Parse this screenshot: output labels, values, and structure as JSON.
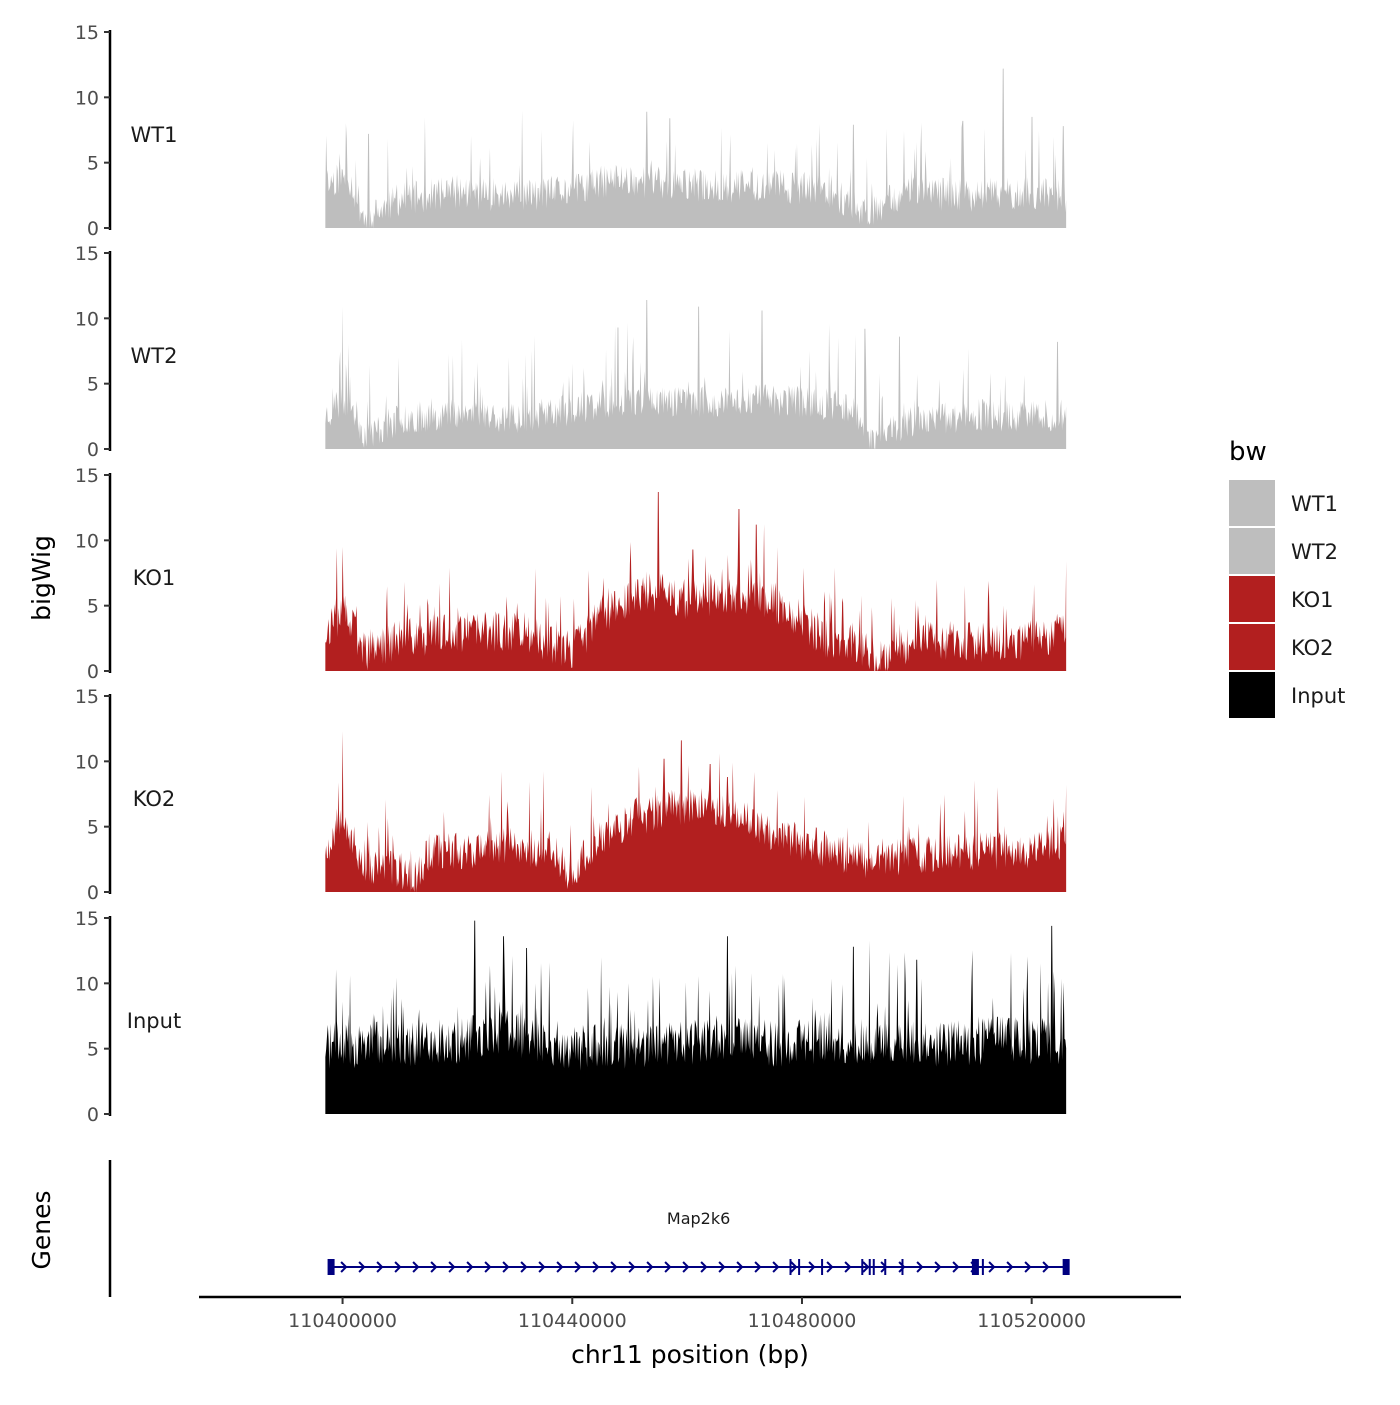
{
  "chart_data": {
    "type": "area",
    "ylabel": "bigWig",
    "xlabel": "chr11 position (bp)",
    "x_range": [
      110375000,
      110546000
    ],
    "x_data_range": [
      110397000,
      110526000
    ],
    "x_ticks": [
      110400000,
      110440000,
      110480000,
      110520000
    ],
    "x_tick_labels": [
      "110400000",
      "110440000",
      "110480000",
      "110520000"
    ],
    "y_range": [
      0,
      15
    ],
    "y_ticks": [
      0,
      5,
      10,
      15
    ],
    "y_tick_labels": [
      "0",
      "5",
      "10",
      "15"
    ],
    "legend": {
      "title": "bw",
      "position": "right",
      "items": [
        {
          "label": "WT1",
          "color": "#bebebe"
        },
        {
          "label": "WT2",
          "color": "#bebebe"
        },
        {
          "label": "KO1",
          "color": "#b21f1f"
        },
        {
          "label": "KO2",
          "color": "#b21f1f"
        },
        {
          "label": "Input",
          "color": "#000000"
        }
      ]
    },
    "series": [
      {
        "name": "WT1",
        "color": "#bebebe",
        "seed": 11,
        "base": 2.6,
        "noise": 2.6,
        "spike_prob": 0.08,
        "spike_max": 5.5,
        "profile": [
          [
            110397000,
            3.5
          ],
          [
            110401000,
            4.0
          ],
          [
            110404000,
            0.6
          ],
          [
            110410000,
            2.2
          ],
          [
            110420000,
            2.8
          ],
          [
            110430000,
            2.4
          ],
          [
            110440000,
            2.9
          ],
          [
            110448000,
            3.8
          ],
          [
            110456000,
            3.4
          ],
          [
            110465000,
            3.2
          ],
          [
            110475000,
            3.3
          ],
          [
            110485000,
            2.8
          ],
          [
            110491000,
            1.2
          ],
          [
            110498000,
            2.7
          ],
          [
            110507000,
            2.5
          ],
          [
            110514000,
            2.6
          ],
          [
            110520000,
            2.7
          ],
          [
            110526000,
            2.4
          ]
        ],
        "peaks": [
          [
            110404500,
            7.2
          ],
          [
            110453000,
            8.9
          ],
          [
            110457000,
            8.4
          ],
          [
            110489000,
            7.9
          ],
          [
            110508000,
            8.2
          ],
          [
            110515000,
            12.2
          ],
          [
            110520000,
            8.5
          ],
          [
            110525500,
            7.8
          ]
        ]
      },
      {
        "name": "WT2",
        "color": "#bebebe",
        "seed": 23,
        "base": 2.8,
        "noise": 2.5,
        "spike_prob": 0.08,
        "spike_max": 5.5,
        "profile": [
          [
            110397000,
            2.6
          ],
          [
            110401000,
            3.8
          ],
          [
            110404000,
            1.0
          ],
          [
            110410000,
            2.3
          ],
          [
            110420000,
            2.8
          ],
          [
            110430000,
            2.4
          ],
          [
            110440000,
            3.0
          ],
          [
            110448000,
            3.8
          ],
          [
            110456000,
            3.7
          ],
          [
            110465000,
            3.5
          ],
          [
            110472000,
            3.9
          ],
          [
            110480000,
            3.6
          ],
          [
            110489000,
            3.3
          ],
          [
            110492000,
            0.8
          ],
          [
            110500000,
            2.2
          ],
          [
            110510000,
            2.6
          ],
          [
            110520000,
            2.5
          ],
          [
            110526000,
            2.6
          ]
        ],
        "peaks": [
          [
            110400000,
            10.9
          ],
          [
            110453000,
            11.4
          ],
          [
            110462000,
            10.9
          ],
          [
            110473000,
            10.6
          ],
          [
            110448000,
            9.3
          ],
          [
            110491000,
            9.2
          ],
          [
            110497000,
            8.6
          ],
          [
            110524500,
            8.2
          ]
        ]
      },
      {
        "name": "KO1",
        "color": "#b21f1f",
        "seed": 37,
        "base": 3.0,
        "noise": 3.2,
        "spike_prob": 0.09,
        "spike_max": 5.0,
        "profile": [
          [
            110397000,
            3.0
          ],
          [
            110400000,
            4.6
          ],
          [
            110404000,
            1.5
          ],
          [
            110410000,
            2.5
          ],
          [
            110420000,
            3.0
          ],
          [
            110430000,
            3.1
          ],
          [
            110440000,
            1.4
          ],
          [
            110441000,
            2.2
          ],
          [
            110446000,
            4.6
          ],
          [
            110453000,
            6.2
          ],
          [
            110460000,
            5.4
          ],
          [
            110470000,
            5.8
          ],
          [
            110477000,
            5.0
          ],
          [
            110484000,
            2.5
          ],
          [
            110490000,
            2.1
          ],
          [
            110493000,
            0.8
          ],
          [
            110500000,
            2.6
          ],
          [
            110510000,
            2.1
          ],
          [
            110520000,
            2.4
          ],
          [
            110525000,
            3.1
          ],
          [
            110526000,
            4.0
          ]
        ],
        "peaks": [
          [
            110400000,
            9.5
          ],
          [
            110455000,
            13.7
          ],
          [
            110469000,
            12.4
          ],
          [
            110472000,
            11.2
          ],
          [
            110461000,
            9.3
          ],
          [
            110526000,
            8.4
          ]
        ]
      },
      {
        "name": "KO2",
        "color": "#b21f1f",
        "seed": 53,
        "base": 3.0,
        "noise": 3.0,
        "spike_prob": 0.09,
        "spike_max": 5.0,
        "profile": [
          [
            110397000,
            3.0
          ],
          [
            110400000,
            6.5
          ],
          [
            110401500,
            4.0
          ],
          [
            110404000,
            1.8
          ],
          [
            110410000,
            1.8
          ],
          [
            110412000,
            0.5
          ],
          [
            110415000,
            3.1
          ],
          [
            110430000,
            3.4
          ],
          [
            110437000,
            3.2
          ],
          [
            110440000,
            1.0
          ],
          [
            110443000,
            3.4
          ],
          [
            110450000,
            5.5
          ],
          [
            110456000,
            6.4
          ],
          [
            110462000,
            6.8
          ],
          [
            110470000,
            5.6
          ],
          [
            110478000,
            4.0
          ],
          [
            110485000,
            3.2
          ],
          [
            110490000,
            2.5
          ],
          [
            110500000,
            2.8
          ],
          [
            110510000,
            3.1
          ],
          [
            110520000,
            3.2
          ],
          [
            110526000,
            3.9
          ]
        ],
        "peaks": [
          [
            110400000,
            12.3
          ],
          [
            110456000,
            10.2
          ],
          [
            110459000,
            11.6
          ],
          [
            110464000,
            9.8
          ],
          [
            110467000,
            8.8
          ],
          [
            110526000,
            8.2
          ]
        ]
      },
      {
        "name": "Input",
        "color": "#000000",
        "seed": 71,
        "base": 5.2,
        "noise": 3.6,
        "spike_prob": 0.13,
        "spike_max": 6.0,
        "profile": [
          [
            110397000,
            5.2
          ],
          [
            110410000,
            5.4
          ],
          [
            110420000,
            5.6
          ],
          [
            110428000,
            6.2
          ],
          [
            110434000,
            5.8
          ],
          [
            110440000,
            5.0
          ],
          [
            110450000,
            5.2
          ],
          [
            110460000,
            5.5
          ],
          [
            110468000,
            6.0
          ],
          [
            110475000,
            5.4
          ],
          [
            110485000,
            5.5
          ],
          [
            110495000,
            5.8
          ],
          [
            110505000,
            5.3
          ],
          [
            110515000,
            5.7
          ],
          [
            110526000,
            5.5
          ]
        ],
        "peaks": [
          [
            110423000,
            14.8
          ],
          [
            110428000,
            13.6
          ],
          [
            110432000,
            12.7
          ],
          [
            110467000,
            13.6
          ],
          [
            110489000,
            12.8
          ],
          [
            110523500,
            14.4
          ],
          [
            110436000,
            11.6
          ],
          [
            110500000,
            11.8
          ]
        ]
      }
    ],
    "genes_track": {
      "label": "Genes",
      "gene_name": "Map2k6",
      "color": "#000080",
      "start": 110398000,
      "end": 110526000,
      "strand": "+",
      "exons": [
        110398000,
        110478000,
        110479500,
        110483500,
        110490500,
        110491800,
        110492500,
        110494500,
        110497500,
        110510200,
        110511500,
        110526000
      ]
    }
  }
}
